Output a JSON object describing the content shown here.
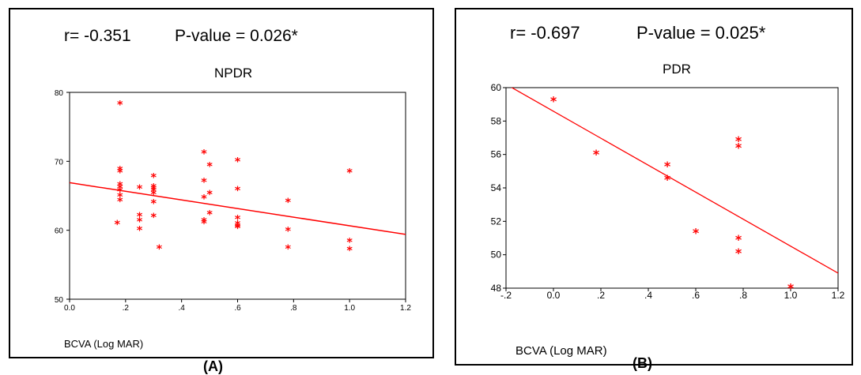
{
  "chart_data": [
    {
      "type": "scatter",
      "panel_label": "(A)",
      "stat_r": "r= -0.351",
      "stat_p": "P-value = 0.026*",
      "title": "NPDR",
      "xlabel": "BCVA (Log MAR)",
      "ylabel": "",
      "xlim": [
        0,
        1.2
      ],
      "ylim": [
        50,
        80
      ],
      "xticks": [
        0,
        0.2,
        0.4,
        0.6,
        0.8,
        1.0,
        1.2
      ],
      "xtick_labels": [
        "0.0",
        ".2",
        ".4",
        ".6",
        ".8",
        "1.0",
        "1.2"
      ],
      "yticks": [
        50,
        60,
        70,
        80
      ],
      "ytick_labels": [
        "50",
        "60",
        "70",
        "80"
      ],
      "marker_color": "#ff0000",
      "line_color": "#ff0000",
      "points": [
        [
          0.18,
          78.2
        ],
        [
          0.18,
          68.7
        ],
        [
          0.18,
          68.4
        ],
        [
          0.18,
          66.5
        ],
        [
          0.18,
          66.1
        ],
        [
          0.18,
          65.6
        ],
        [
          0.18,
          64.9
        ],
        [
          0.18,
          64.2
        ],
        [
          0.17,
          60.9
        ],
        [
          0.25,
          66.0
        ],
        [
          0.25,
          62.0
        ],
        [
          0.25,
          61.3
        ],
        [
          0.25,
          60.0
        ],
        [
          0.3,
          67.7
        ],
        [
          0.3,
          66.2
        ],
        [
          0.3,
          65.9
        ],
        [
          0.3,
          65.6
        ],
        [
          0.3,
          65.2
        ],
        [
          0.3,
          63.9
        ],
        [
          0.3,
          61.9
        ],
        [
          0.32,
          57.3
        ],
        [
          0.48,
          71.1
        ],
        [
          0.48,
          67.0
        ],
        [
          0.48,
          64.6
        ],
        [
          0.48,
          61.3
        ],
        [
          0.48,
          61.0
        ],
        [
          0.5,
          69.3
        ],
        [
          0.5,
          65.2
        ],
        [
          0.5,
          62.3
        ],
        [
          0.6,
          70.0
        ],
        [
          0.6,
          65.8
        ],
        [
          0.6,
          61.6
        ],
        [
          0.6,
          60.8
        ],
        [
          0.6,
          60.5
        ],
        [
          0.6,
          60.3
        ],
        [
          0.78,
          64.1
        ],
        [
          0.78,
          59.9
        ],
        [
          0.78,
          57.3
        ],
        [
          1.0,
          68.4
        ],
        [
          1.0,
          58.3
        ],
        [
          1.0,
          57.1
        ]
      ],
      "fit_line": [
        [
          0,
          66.9
        ],
        [
          1.2,
          59.4
        ]
      ]
    },
    {
      "type": "scatter",
      "panel_label": "(B)",
      "stat_r": "r= -0.697",
      "stat_p": "P-value = 0.025*",
      "title": "PDR",
      "xlabel": "BCVA (Log MAR)",
      "ylabel": "",
      "xlim": [
        -0.2,
        1.2
      ],
      "ylim": [
        48,
        60
      ],
      "xticks": [
        -0.2,
        0,
        0.2,
        0.4,
        0.6,
        0.8,
        1.0,
        1.2
      ],
      "xtick_labels": [
        "-.2",
        "0.0",
        ".2",
        ".4",
        ".6",
        ".8",
        "1.0",
        "1.2"
      ],
      "yticks": [
        48,
        50,
        52,
        54,
        56,
        58,
        60
      ],
      "ytick_labels": [
        "48",
        "50",
        "52",
        "54",
        "56",
        "58",
        "60"
      ],
      "marker_color": "#ff0000",
      "line_color": "#ff0000",
      "points": [
        [
          0.0,
          59.2
        ],
        [
          0.18,
          56.0
        ],
        [
          0.48,
          55.3
        ],
        [
          0.48,
          54.5
        ],
        [
          0.6,
          51.3
        ],
        [
          0.78,
          56.8
        ],
        [
          0.78,
          56.4
        ],
        [
          0.78,
          50.9
        ],
        [
          0.78,
          50.1
        ],
        [
          1.0,
          48.0
        ]
      ],
      "fit_line": [
        [
          -0.2,
          60.2
        ],
        [
          1.2,
          48.9
        ]
      ]
    }
  ]
}
